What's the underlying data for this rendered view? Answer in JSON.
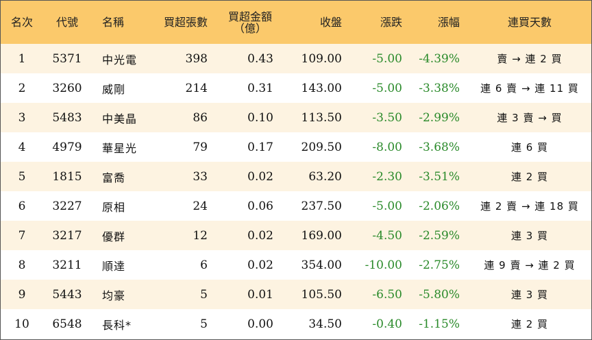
{
  "colors": {
    "header_bg": "#fbc96b",
    "row_alt_bg": "#fdf3e1",
    "negative": "#2a8a2a"
  },
  "headers": {
    "rank": "名次",
    "code": "代號",
    "name": "名稱",
    "net_buy_lots": "買超張數",
    "net_buy_amount_line1": "買超金額",
    "net_buy_amount_line2": "（億）",
    "close": "收盤",
    "change": "漲跌",
    "change_pct": "漲幅",
    "consecutive_days": "連買天數"
  },
  "rows": [
    {
      "rank": "1",
      "code": "5371",
      "name": "中光電",
      "lots": "398",
      "amount": "0.43",
      "close": "109.00",
      "change": "-5.00",
      "pct": "-4.39%",
      "days": "賣 → 連 2 買"
    },
    {
      "rank": "2",
      "code": "3260",
      "name": "威剛",
      "lots": "214",
      "amount": "0.31",
      "close": "143.00",
      "change": "-5.00",
      "pct": "-3.38%",
      "days": "連 6 賣 → 連 11 買"
    },
    {
      "rank": "3",
      "code": "5483",
      "name": "中美晶",
      "lots": "86",
      "amount": "0.10",
      "close": "113.50",
      "change": "-3.50",
      "pct": "-2.99%",
      "days": "連 3 賣 → 買"
    },
    {
      "rank": "4",
      "code": "4979",
      "name": "華星光",
      "lots": "79",
      "amount": "0.17",
      "close": "209.50",
      "change": "-8.00",
      "pct": "-3.68%",
      "days": "連 6 買"
    },
    {
      "rank": "5",
      "code": "1815",
      "name": "富喬",
      "lots": "33",
      "amount": "0.02",
      "close": "63.20",
      "change": "-2.30",
      "pct": "-3.51%",
      "days": "連 2 買"
    },
    {
      "rank": "6",
      "code": "3227",
      "name": "原相",
      "lots": "24",
      "amount": "0.06",
      "close": "237.50",
      "change": "-5.00",
      "pct": "-2.06%",
      "days": "連 2 賣 → 連 18 買"
    },
    {
      "rank": "7",
      "code": "3217",
      "name": "優群",
      "lots": "12",
      "amount": "0.02",
      "close": "169.00",
      "change": "-4.50",
      "pct": "-2.59%",
      "days": "連 3 買"
    },
    {
      "rank": "8",
      "code": "3211",
      "name": "順達",
      "lots": "6",
      "amount": "0.02",
      "close": "354.00",
      "change": "-10.00",
      "pct": "-2.75%",
      "days": "連 9 賣 → 連 2 買"
    },
    {
      "rank": "9",
      "code": "5443",
      "name": "均豪",
      "lots": "5",
      "amount": "0.01",
      "close": "105.50",
      "change": "-6.50",
      "pct": "-5.80%",
      "days": "連 3 買"
    },
    {
      "rank": "10",
      "code": "6548",
      "name": "長科*",
      "lots": "5",
      "amount": "0.00",
      "close": "34.50",
      "change": "-0.40",
      "pct": "-1.15%",
      "days": "連 2 買"
    }
  ]
}
